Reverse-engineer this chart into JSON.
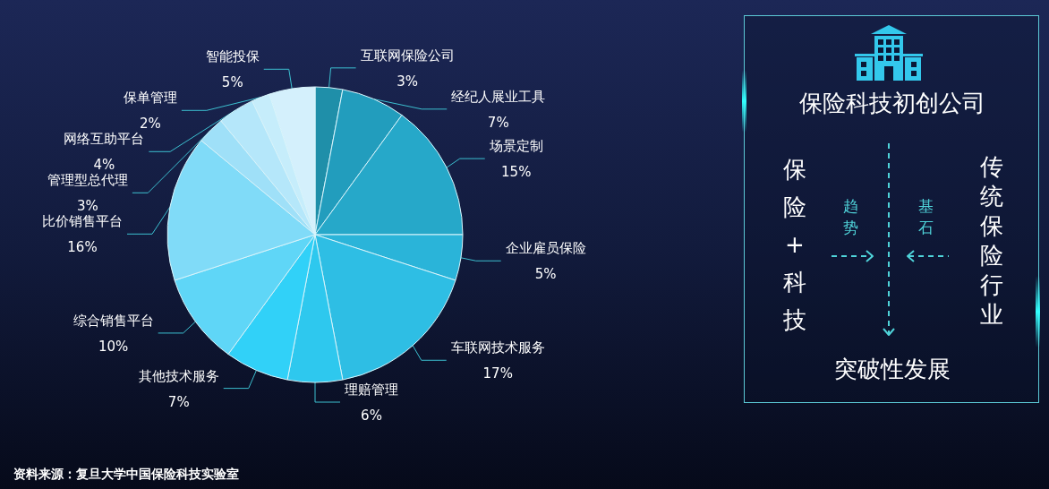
{
  "chart_data": [
    {
      "type": "pie",
      "categories": [
        "互联网保险公司",
        "经纪人展业工具",
        "场景定制",
        "企业雇员保险",
        "车联网技术服务",
        "理赔管理",
        "其他技术服务",
        "综合销售平台",
        "比价销售平台",
        "管理型总代理",
        "网络互助平台",
        "保单管理",
        "智能投保"
      ],
      "values": [
        3,
        7,
        15,
        5,
        17,
        6,
        7,
        10,
        16,
        3,
        4,
        2,
        5
      ],
      "value_labels": [
        "3%",
        "7%",
        "15%",
        "5%",
        "17%",
        "6%",
        "7%",
        "10%",
        "16%",
        "3%",
        "4%",
        "2%",
        "5%"
      ],
      "colors": [
        "#1f8fa9",
        "#229dbd",
        "#26a8c9",
        "#2ab4d9",
        "#2ebee4",
        "#2ec8ee",
        "#31d1f8",
        "#5fd6f7",
        "#80dbf8",
        "#9fe0f8",
        "#b5e7fa",
        "#c6edfb",
        "#d4f0fc"
      ],
      "legend": false,
      "annotations": [
        "资料来源：复旦大学中国保险科技实验室"
      ]
    },
    {
      "type": "other",
      "title": "保险科技初创公司",
      "annotations": [
        "保险+科技",
        "趋势",
        "基石",
        "传统保险行业",
        "突破性发展"
      ]
    }
  ]
}
